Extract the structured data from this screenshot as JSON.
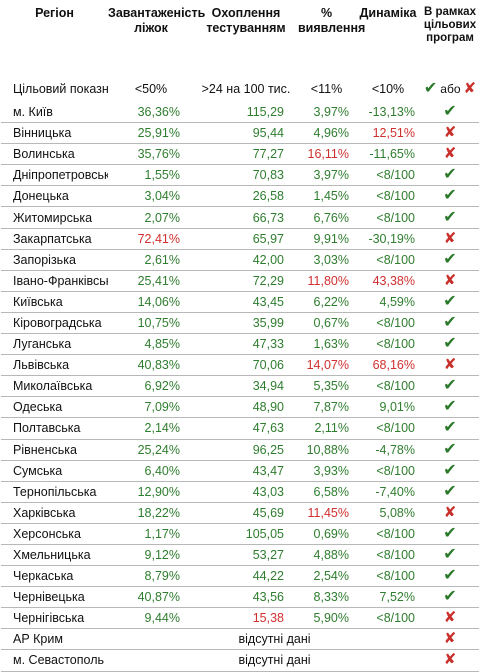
{
  "headers": {
    "region": "Регіон",
    "bed_occupancy": "Завантаженість ліжок",
    "testing": "Охоплення тестуванням",
    "detection": "% виявлення",
    "dynamics": "Динаміка",
    "programs": "В рамках цільових програм"
  },
  "target": {
    "label": "Цільовий показник",
    "bed_occupancy": "<50%",
    "testing": ">24 на 100 тис.",
    "detection": "<11%",
    "dynamics": "<10%",
    "legend_or": "або"
  },
  "colors": {
    "green": "#2f7d2f",
    "red": "#d0302f",
    "check": "#2b7a2b",
    "cross": "#c9302c"
  },
  "absent_text": "відсутні дані",
  "rows": [
    {
      "name": "м. Київ",
      "bed": "36,36%",
      "bc": "g",
      "test": "115,29",
      "tc": "g",
      "det": "3,97%",
      "dc": "g",
      "dyn": "-13,13%",
      "yc": "g",
      "ok": "check"
    },
    {
      "name": "Вінницька",
      "bed": "25,91%",
      "bc": "g",
      "test": "95,44",
      "tc": "g",
      "det": "4,96%",
      "dc": "g",
      "dyn": "12,51%",
      "yc": "r",
      "ok": "cross"
    },
    {
      "name": "Волинська",
      "bed": "35,76%",
      "bc": "g",
      "test": "77,27",
      "tc": "g",
      "det": "16,11%",
      "dc": "r",
      "dyn": "-11,65%",
      "yc": "g",
      "ok": "cross"
    },
    {
      "name": "Дніпропетровська",
      "bed": "1,55%",
      "bc": "g",
      "test": "70,83",
      "tc": "g",
      "det": "3,97%",
      "dc": "g",
      "dyn": "<8/100",
      "yc": "g",
      "ok": "check"
    },
    {
      "name": "Донецька",
      "bed": "3,04%",
      "bc": "g",
      "test": "26,58",
      "tc": "g",
      "det": "1,45%",
      "dc": "g",
      "dyn": "<8/100",
      "yc": "g",
      "ok": "check"
    },
    {
      "name": "Житомирська",
      "bed": "2,07%",
      "bc": "g",
      "test": "66,73",
      "tc": "g",
      "det": "6,76%",
      "dc": "g",
      "dyn": "<8/100",
      "yc": "g",
      "ok": "check"
    },
    {
      "name": "Закарпатська",
      "bed": "72,41%",
      "bc": "r",
      "test": "65,97",
      "tc": "g",
      "det": "9,91%",
      "dc": "g",
      "dyn": "-30,19%",
      "yc": "g",
      "ok": "cross"
    },
    {
      "name": "Запорізька",
      "bed": "2,61%",
      "bc": "g",
      "test": "42,00",
      "tc": "g",
      "det": "3,03%",
      "dc": "g",
      "dyn": "<8/100",
      "yc": "g",
      "ok": "check"
    },
    {
      "name": "Івано-Франківська",
      "bed": "25,41%",
      "bc": "g",
      "test": "72,29",
      "tc": "g",
      "det": "11,80%",
      "dc": "r",
      "dyn": "43,38%",
      "yc": "r",
      "ok": "cross"
    },
    {
      "name": "Київська",
      "bed": "14,06%",
      "bc": "g",
      "test": "43,45",
      "tc": "g",
      "det": "6,22%",
      "dc": "g",
      "dyn": "4,59%",
      "yc": "g",
      "ok": "check"
    },
    {
      "name": "Кіровоградська",
      "bed": "10,75%",
      "bc": "g",
      "test": "35,99",
      "tc": "g",
      "det": "0,67%",
      "dc": "g",
      "dyn": "<8/100",
      "yc": "g",
      "ok": "check"
    },
    {
      "name": "Луганська",
      "bed": "4,85%",
      "bc": "g",
      "test": "47,33",
      "tc": "g",
      "det": "1,63%",
      "dc": "g",
      "dyn": "<8/100",
      "yc": "g",
      "ok": "check"
    },
    {
      "name": "Львівська",
      "bed": "40,83%",
      "bc": "g",
      "test": "70,06",
      "tc": "g",
      "det": "14,07%",
      "dc": "r",
      "dyn": "68,16%",
      "yc": "r",
      "ok": "cross"
    },
    {
      "name": "Миколаївська",
      "bed": "6,92%",
      "bc": "g",
      "test": "34,94",
      "tc": "g",
      "det": "5,35%",
      "dc": "g",
      "dyn": "<8/100",
      "yc": "g",
      "ok": "check"
    },
    {
      "name": "Одеська",
      "bed": "7,09%",
      "bc": "g",
      "test": "48,90",
      "tc": "g",
      "det": "7,87%",
      "dc": "g",
      "dyn": "9,01%",
      "yc": "g",
      "ok": "check"
    },
    {
      "name": "Полтавська",
      "bed": "2,14%",
      "bc": "g",
      "test": "47,63",
      "tc": "g",
      "det": "2,11%",
      "dc": "g",
      "dyn": "<8/100",
      "yc": "g",
      "ok": "check"
    },
    {
      "name": "Рівненська",
      "bed": "25,24%",
      "bc": "g",
      "test": "96,25",
      "tc": "g",
      "det": "10,88%",
      "dc": "g",
      "dyn": "-4,78%",
      "yc": "g",
      "ok": "check"
    },
    {
      "name": "Сумська",
      "bed": "6,40%",
      "bc": "g",
      "test": "43,47",
      "tc": "g",
      "det": "3,93%",
      "dc": "g",
      "dyn": "<8/100",
      "yc": "g",
      "ok": "check"
    },
    {
      "name": "Тернопільська",
      "bed": "12,90%",
      "bc": "g",
      "test": "43,03",
      "tc": "g",
      "det": "6,58%",
      "dc": "g",
      "dyn": "-7,40%",
      "yc": "g",
      "ok": "check"
    },
    {
      "name": "Харківська",
      "bed": "18,22%",
      "bc": "g",
      "test": "45,69",
      "tc": "g",
      "det": "11,45%",
      "dc": "r",
      "dyn": "5,08%",
      "yc": "g",
      "ok": "cross"
    },
    {
      "name": "Херсонська",
      "bed": "1,17%",
      "bc": "g",
      "test": "105,05",
      "tc": "g",
      "det": "0,69%",
      "dc": "g",
      "dyn": "<8/100",
      "yc": "g",
      "ok": "check"
    },
    {
      "name": "Хмельницька",
      "bed": "9,12%",
      "bc": "g",
      "test": "53,27",
      "tc": "g",
      "det": "4,88%",
      "dc": "g",
      "dyn": "<8/100",
      "yc": "g",
      "ok": "check"
    },
    {
      "name": "Черкаська",
      "bed": "8,79%",
      "bc": "g",
      "test": "44,22",
      "tc": "g",
      "det": "2,54%",
      "dc": "g",
      "dyn": "<8/100",
      "yc": "g",
      "ok": "check"
    },
    {
      "name": "Чернівецька",
      "bed": "40,87%",
      "bc": "g",
      "test": "43,56",
      "tc": "g",
      "det": "8,33%",
      "dc": "g",
      "dyn": "7,52%",
      "yc": "g",
      "ok": "check"
    },
    {
      "name": "Чернігівська",
      "bed": "9,44%",
      "bc": "g",
      "test": "15,38",
      "tc": "r",
      "det": "5,90%",
      "dc": "g",
      "dyn": "<8/100",
      "yc": "g",
      "ok": "cross"
    },
    {
      "name": "АР Крим",
      "absent": true,
      "ok": "cross"
    },
    {
      "name": "м. Севастополь",
      "absent": true,
      "ok": "cross"
    }
  ]
}
